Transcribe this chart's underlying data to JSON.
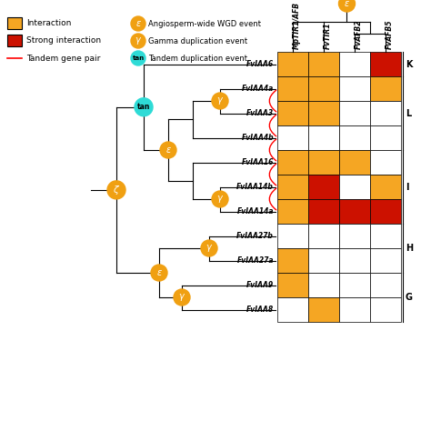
{
  "genes": [
    "FvIAA6",
    "FvIAA4a",
    "FvIAA3",
    "FvIAA4b",
    "FvIAA16",
    "FvIAA14b",
    "FvIAA14a",
    "FvIAA27b",
    "FvIAA27a",
    "FvIAA9",
    "FvIAA8"
  ],
  "columns": [
    "MpTIR1/AFB",
    "FvTIR1",
    "FvAFB2",
    "FvAFB5"
  ],
  "heatmap": [
    [
      "orange",
      "orange",
      "white",
      "red"
    ],
    [
      "orange",
      "orange",
      "white",
      "orange"
    ],
    [
      "orange",
      "orange",
      "white",
      "white"
    ],
    [
      "white",
      "white",
      "white",
      "white"
    ],
    [
      "orange",
      "orange",
      "orange",
      "white"
    ],
    [
      "orange",
      "red",
      "white",
      "orange"
    ],
    [
      "orange",
      "red",
      "red",
      "red"
    ],
    [
      "white",
      "white",
      "white",
      "white"
    ],
    [
      "orange",
      "white",
      "white",
      "white"
    ],
    [
      "orange",
      "white",
      "white",
      "white"
    ],
    [
      "white",
      "orange",
      "white",
      "white"
    ]
  ],
  "cluster_positions": [
    [
      "K",
      0,
      0
    ],
    [
      "L",
      1,
      3
    ],
    [
      "I",
      4,
      6
    ],
    [
      "H",
      7,
      8
    ],
    [
      "G",
      9,
      10
    ]
  ],
  "orange_color": "#F5A623",
  "red_color": "#CC1100",
  "tan_color": "#2EDBD6",
  "gold_node": "#F0A012",
  "background": "white",
  "legend": {
    "interaction": "Interaction",
    "strong": "Strong interaction",
    "tandem_line": "Tandem gene pair",
    "epsilon_label": "Angiosperm-wide WGD event",
    "gamma_label": "Gamma duplication event",
    "tan_label": "Tandem duplication event"
  }
}
